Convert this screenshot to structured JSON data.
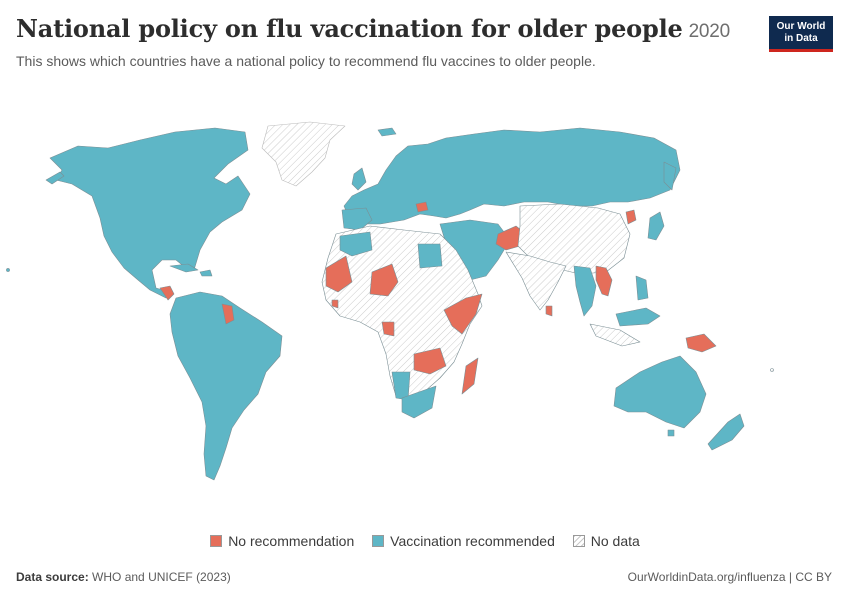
{
  "header": {
    "title": "National policy on flu vaccination for older people",
    "year": "2020",
    "subtitle": "This shows which countries have a national policy to recommend flu vaccines to older people."
  },
  "logo": {
    "line1": "Our World",
    "line2": "in Data"
  },
  "legend": {
    "no_recommendation": "No recommendation",
    "vaccination_recommended": "Vaccination recommended",
    "no_data": "No data"
  },
  "colors": {
    "no_recommendation": "#e56e5a",
    "vaccination_recommended": "#5eb6c6",
    "no_data": "#ffffff",
    "hatch": "#cccccc",
    "border": "#7b8f95"
  },
  "footer": {
    "source_label": "Data source:",
    "source_value": "WHO and UNICEF (2023)",
    "url": "OurWorldinData.org/influenza | CC BY"
  }
}
